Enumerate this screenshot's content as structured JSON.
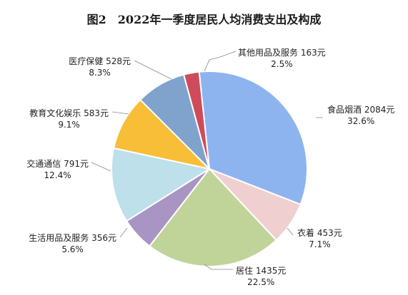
{
  "title": {
    "figure_label": "图2",
    "text": "2022年一季度居民人均消费支出及构成"
  },
  "chart_data": {
    "type": "pie",
    "title": "2022年一季度居民人均消费支出及构成",
    "start_angle_deg": -6,
    "direction": "clockwise",
    "slices": [
      {
        "name": "食品烟酒",
        "value": 2084,
        "value_text": "2084元",
        "percent_text": "32.6%",
        "color": "#8eb4f0"
      },
      {
        "name": "衣着",
        "value": 453,
        "value_text": "453元",
        "percent_text": "7.1%",
        "color": "#f0cfd0"
      },
      {
        "name": "居住",
        "value": 1435,
        "value_text": "1435元",
        "percent_text": "22.5%",
        "color": "#c0d49a"
      },
      {
        "name": "生活用品及服务",
        "value": 356,
        "value_text": "356元",
        "percent_text": "5.6%",
        "color": "#a895c3"
      },
      {
        "name": "交通通信",
        "value": 791,
        "value_text": "791元",
        "percent_text": "12.4%",
        "color": "#bde0ea"
      },
      {
        "name": "教育文化娱乐",
        "value": 583,
        "value_text": "583元",
        "percent_text": "9.1%",
        "color": "#f8be38"
      },
      {
        "name": "医疗保健",
        "value": 528,
        "value_text": "528元",
        "percent_text": "8.3%",
        "color": "#7fa3cd"
      },
      {
        "name": "其他用品及服务",
        "value": 163,
        "value_text": "163元",
        "percent_text": "2.5%",
        "color": "#cf4a5a"
      }
    ]
  }
}
